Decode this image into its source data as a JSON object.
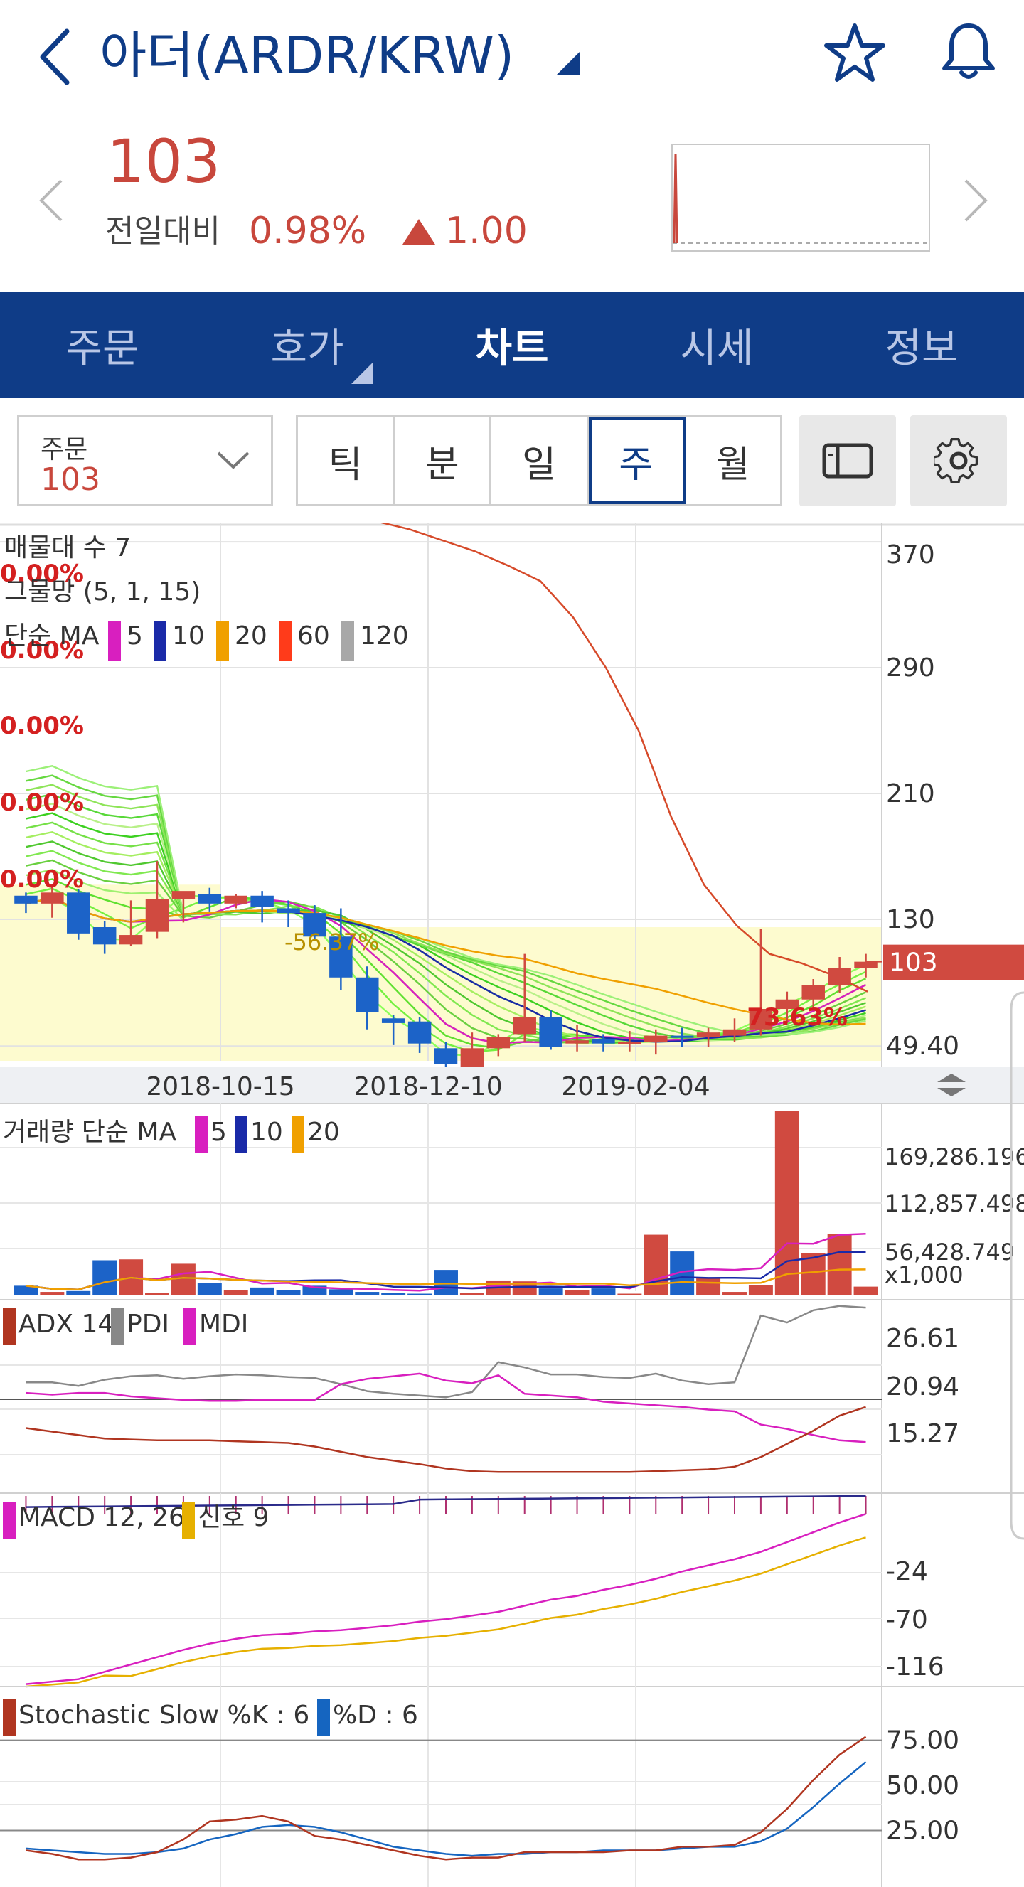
{
  "header": {
    "title": "아더(ARDR/KRW)",
    "back_icon": "chevron-left-icon",
    "dropdown_icon": "triangle-down-icon",
    "favorite_icon": "star-icon",
    "alert_icon": "bell-icon"
  },
  "quote": {
    "price": "103",
    "change_label": "전일대비",
    "change_percent": "0.98%",
    "change_value": "1.00",
    "direction": "up",
    "color_up": "#c8473c"
  },
  "tabs": [
    {
      "label": "주문",
      "active": false
    },
    {
      "label": "호가",
      "active": false,
      "has_submenu": true
    },
    {
      "label": "차트",
      "active": true
    },
    {
      "label": "시세",
      "active": false
    },
    {
      "label": "정보",
      "active": false
    }
  ],
  "toolbar": {
    "order_label": "주문",
    "order_value": "103",
    "periods": [
      {
        "label": "틱",
        "active": false
      },
      {
        "label": "분",
        "active": false
      },
      {
        "label": "일",
        "active": false
      },
      {
        "label": "주",
        "active": true
      },
      {
        "label": "월",
        "active": false
      }
    ],
    "layout_icon": "layout-toggle-icon",
    "settings_icon": "gear-icon"
  },
  "chart_data": [
    {
      "type": "candlestick",
      "title": "",
      "legend": [
        "매물대 수 7",
        "그물망 (5, 1, 15)",
        "단순 MA"
      ],
      "ma_legend": [
        {
          "name": "5",
          "color": "#d81fbf"
        },
        {
          "name": "10",
          "color": "#1a2aa8"
        },
        {
          "name": "20",
          "color": "#f0a000"
        },
        {
          "name": "60",
          "color": "#ff3b1a"
        },
        {
          "name": "120",
          "color": "#a8a8a8"
        }
      ],
      "y_ticks": [
        "370",
        "290",
        "210",
        "130",
        "49.40"
      ],
      "ylim": [
        40,
        380
      ],
      "current_price": "103",
      "x_ticks": [
        "2018-10-15",
        "2018-12-10",
        "2019-02-04"
      ],
      "overlay_labels": [
        "0.00%",
        "0.00%",
        "0.00%",
        "0.00%",
        "0.00%",
        "0.00%",
        "-56.37%",
        "73.63%"
      ],
      "candles": [
        [
          145,
          147,
          134,
          140
        ],
        [
          140,
          151,
          131,
          147
        ],
        [
          147,
          149,
          117,
          121
        ],
        [
          125,
          129,
          108,
          114
        ],
        [
          114,
          142,
          113,
          120
        ],
        [
          122,
          167,
          118,
          143
        ],
        [
          143,
          146,
          128,
          148
        ],
        [
          146,
          150,
          135,
          140
        ],
        [
          140,
          146,
          137,
          145
        ],
        [
          145,
          148,
          128,
          138
        ],
        [
          137,
          142,
          125,
          134
        ],
        [
          134,
          139,
          116,
          119
        ],
        [
          119,
          137,
          85,
          93
        ],
        [
          93,
          100,
          60,
          71
        ],
        [
          67,
          69,
          50,
          64
        ],
        [
          65,
          68,
          45,
          51
        ],
        [
          48,
          52,
          35,
          38
        ],
        [
          35,
          58,
          34,
          48
        ],
        [
          48,
          57,
          43,
          55
        ],
        [
          57,
          108,
          52,
          68
        ],
        [
          68,
          72,
          47,
          49
        ],
        [
          51,
          63,
          46,
          53
        ],
        [
          54,
          57,
          46,
          51
        ],
        [
          51,
          59,
          46,
          52
        ],
        [
          52,
          60,
          44,
          56
        ],
        [
          56,
          61,
          49,
          55
        ],
        [
          55,
          61,
          49,
          58
        ],
        [
          56,
          67,
          52,
          60
        ],
        [
          60,
          124,
          56,
          73
        ],
        [
          73,
          84,
          64,
          79
        ],
        [
          79,
          92,
          72,
          88
        ],
        [
          88,
          106,
          83,
          99
        ],
        [
          99,
          108,
          93,
          103
        ]
      ],
      "line_orange": [
        383,
        378,
        371,
        364,
        355,
        345,
        322,
        290,
        250,
        195,
        152,
        126,
        108,
        102,
        94,
        84
      ]
    },
    {
      "type": "bar",
      "title": "",
      "legend": [
        "거래량 단순 MA"
      ],
      "ma_legend": [
        {
          "name": "5",
          "color": "#d81fbf"
        },
        {
          "name": "10",
          "color": "#1a2aa8"
        },
        {
          "name": "20",
          "color": "#f0a000"
        }
      ],
      "y_ticks": [
        "169,286.196",
        "112,857.498",
        "56,428.749"
      ],
      "unit": "x1,000",
      "ylim": [
        0,
        210000
      ],
      "values": [
        11000,
        4000,
        5000,
        40000,
        41000,
        3000,
        36000,
        14000,
        6000,
        9000,
        6000,
        11000,
        7000,
        4000,
        3000,
        2000,
        29000,
        3000,
        17000,
        16000,
        8000,
        6000,
        8000,
        2000,
        69000,
        50000,
        20000,
        4000,
        12000,
        210000,
        48000,
        70000,
        10000
      ]
    },
    {
      "type": "line",
      "title": "",
      "legend": [
        "ADX 14",
        "PDI",
        "MDI"
      ],
      "colors": {
        "ADX": "#b03520",
        "PDI": "#888888",
        "MDI": "#d81fbf"
      },
      "y_ticks": [
        "26.61",
        "20.94",
        "15.27"
      ],
      "ylim": [
        10,
        32
      ]
    },
    {
      "type": "line",
      "title": "",
      "legend": [
        "MACD 12, 26",
        "신호 9"
      ],
      "colors": {
        "MACD": "#d81fbf",
        "Signal": "#e6b000"
      },
      "y_ticks": [
        "-24",
        "-70",
        "-116"
      ],
      "ylim": [
        -170,
        -12
      ]
    },
    {
      "type": "line",
      "title": "",
      "legend": [
        "Stochastic Slow %K : 6",
        "%D : 6"
      ],
      "colors": {
        "K": "#b03520",
        "D": "#1565c0"
      },
      "y_ticks": [
        "75.00",
        "50.00",
        "25.00"
      ],
      "ylim": [
        0,
        100
      ]
    }
  ]
}
